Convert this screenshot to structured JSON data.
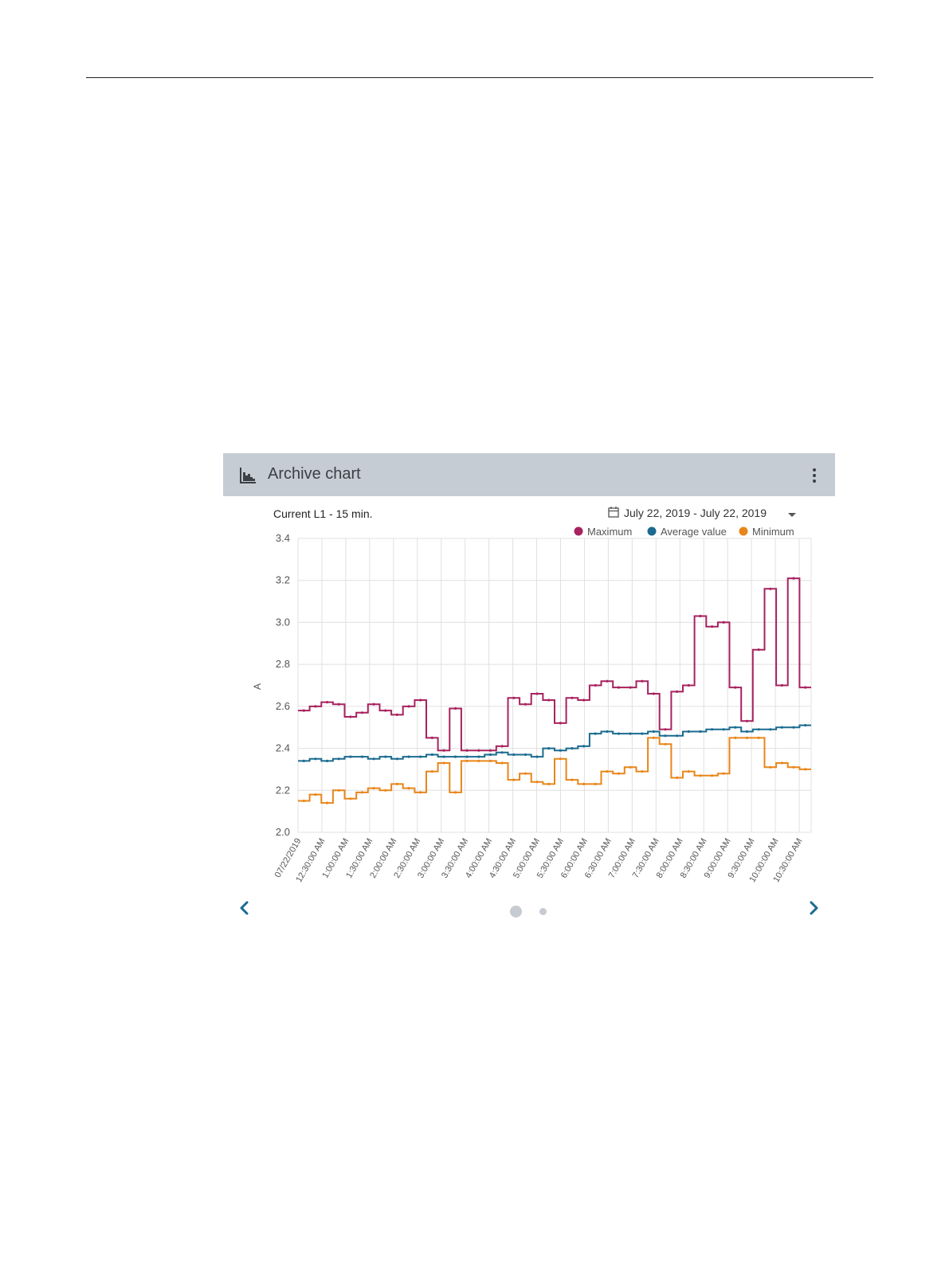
{
  "widget": {
    "title": "Archive chart",
    "header_icon": "bar-chart-icon",
    "menu_icon": "more-vertical-icon"
  },
  "chart_header": {
    "measurement": "Current L1 - 15 min.",
    "date_range": "July 22, 2019 - July 22, 2019",
    "calendar_icon": "calendar-icon",
    "dropdown_icon": "caret-down-icon"
  },
  "pager": {
    "prev_icon": "chevron-left-icon",
    "next_icon": "chevron-right-icon",
    "pages": 2,
    "active": 1
  },
  "colors": {
    "maximum": "#a8225f",
    "average": "#1a6b8f",
    "minimum": "#e8861a",
    "accent": "#1a6b8f"
  },
  "chart_data": {
    "type": "line",
    "step": true,
    "ylabel": "A",
    "ylim": [
      2.0,
      3.4
    ],
    "yticks": [
      "2.0",
      "2.2",
      "2.4",
      "2.6",
      "2.8",
      "3.0",
      "3.2",
      "3.4"
    ],
    "grid": true,
    "legend_position": "top-right",
    "x_labels": [
      "07/22/2019",
      "12:30:00 AM",
      "1:00:00 AM",
      "1:30:00 AM",
      "2:00:00 AM",
      "2:30:00 AM",
      "3:00:00 AM",
      "3:30:00 AM",
      "4:00:00 AM",
      "4:30:00 AM",
      "5:00:00 AM",
      "5:30:00 AM",
      "6:00:00 AM",
      "6:30:00 AM",
      "7:00:00 AM",
      "7:30:00 AM",
      "8:00:00 AM",
      "8:30:00 AM",
      "9:00:00 AM",
      "9:30:00 AM",
      "10:00:00 AM",
      "10:30:00 AM"
    ],
    "series": [
      {
        "name": "Maximum",
        "values": [
          2.58,
          2.6,
          2.62,
          2.61,
          2.55,
          2.57,
          2.61,
          2.58,
          2.56,
          2.6,
          2.63,
          2.45,
          2.39,
          2.59,
          2.39,
          2.39,
          2.39,
          2.41,
          2.64,
          2.61,
          2.66,
          2.63,
          2.52,
          2.64,
          2.63,
          2.7,
          2.72,
          2.69,
          2.69,
          2.72,
          2.66,
          2.49,
          2.67,
          2.7,
          3.03,
          2.98,
          3.0,
          2.69,
          2.53,
          2.87,
          3.16,
          2.7,
          3.21,
          2.69
        ]
      },
      {
        "name": "Average value",
        "values": [
          2.34,
          2.35,
          2.34,
          2.35,
          2.36,
          2.36,
          2.35,
          2.36,
          2.35,
          2.36,
          2.36,
          2.37,
          2.36,
          2.36,
          2.36,
          2.36,
          2.37,
          2.38,
          2.37,
          2.37,
          2.36,
          2.4,
          2.39,
          2.4,
          2.41,
          2.47,
          2.48,
          2.47,
          2.47,
          2.47,
          2.48,
          2.46,
          2.46,
          2.48,
          2.48,
          2.49,
          2.49,
          2.5,
          2.48,
          2.49,
          2.49,
          2.5,
          2.5,
          2.51
        ]
      },
      {
        "name": "Minimum",
        "values": [
          2.15,
          2.18,
          2.14,
          2.2,
          2.16,
          2.19,
          2.21,
          2.2,
          2.23,
          2.21,
          2.19,
          2.29,
          2.33,
          2.19,
          2.34,
          2.34,
          2.34,
          2.33,
          2.25,
          2.28,
          2.24,
          2.23,
          2.35,
          2.25,
          2.23,
          2.23,
          2.29,
          2.28,
          2.31,
          2.29,
          2.45,
          2.42,
          2.26,
          2.29,
          2.27,
          2.27,
          2.28,
          2.45,
          2.45,
          2.45,
          2.31,
          2.33,
          2.31,
          2.3
        ]
      }
    ]
  }
}
